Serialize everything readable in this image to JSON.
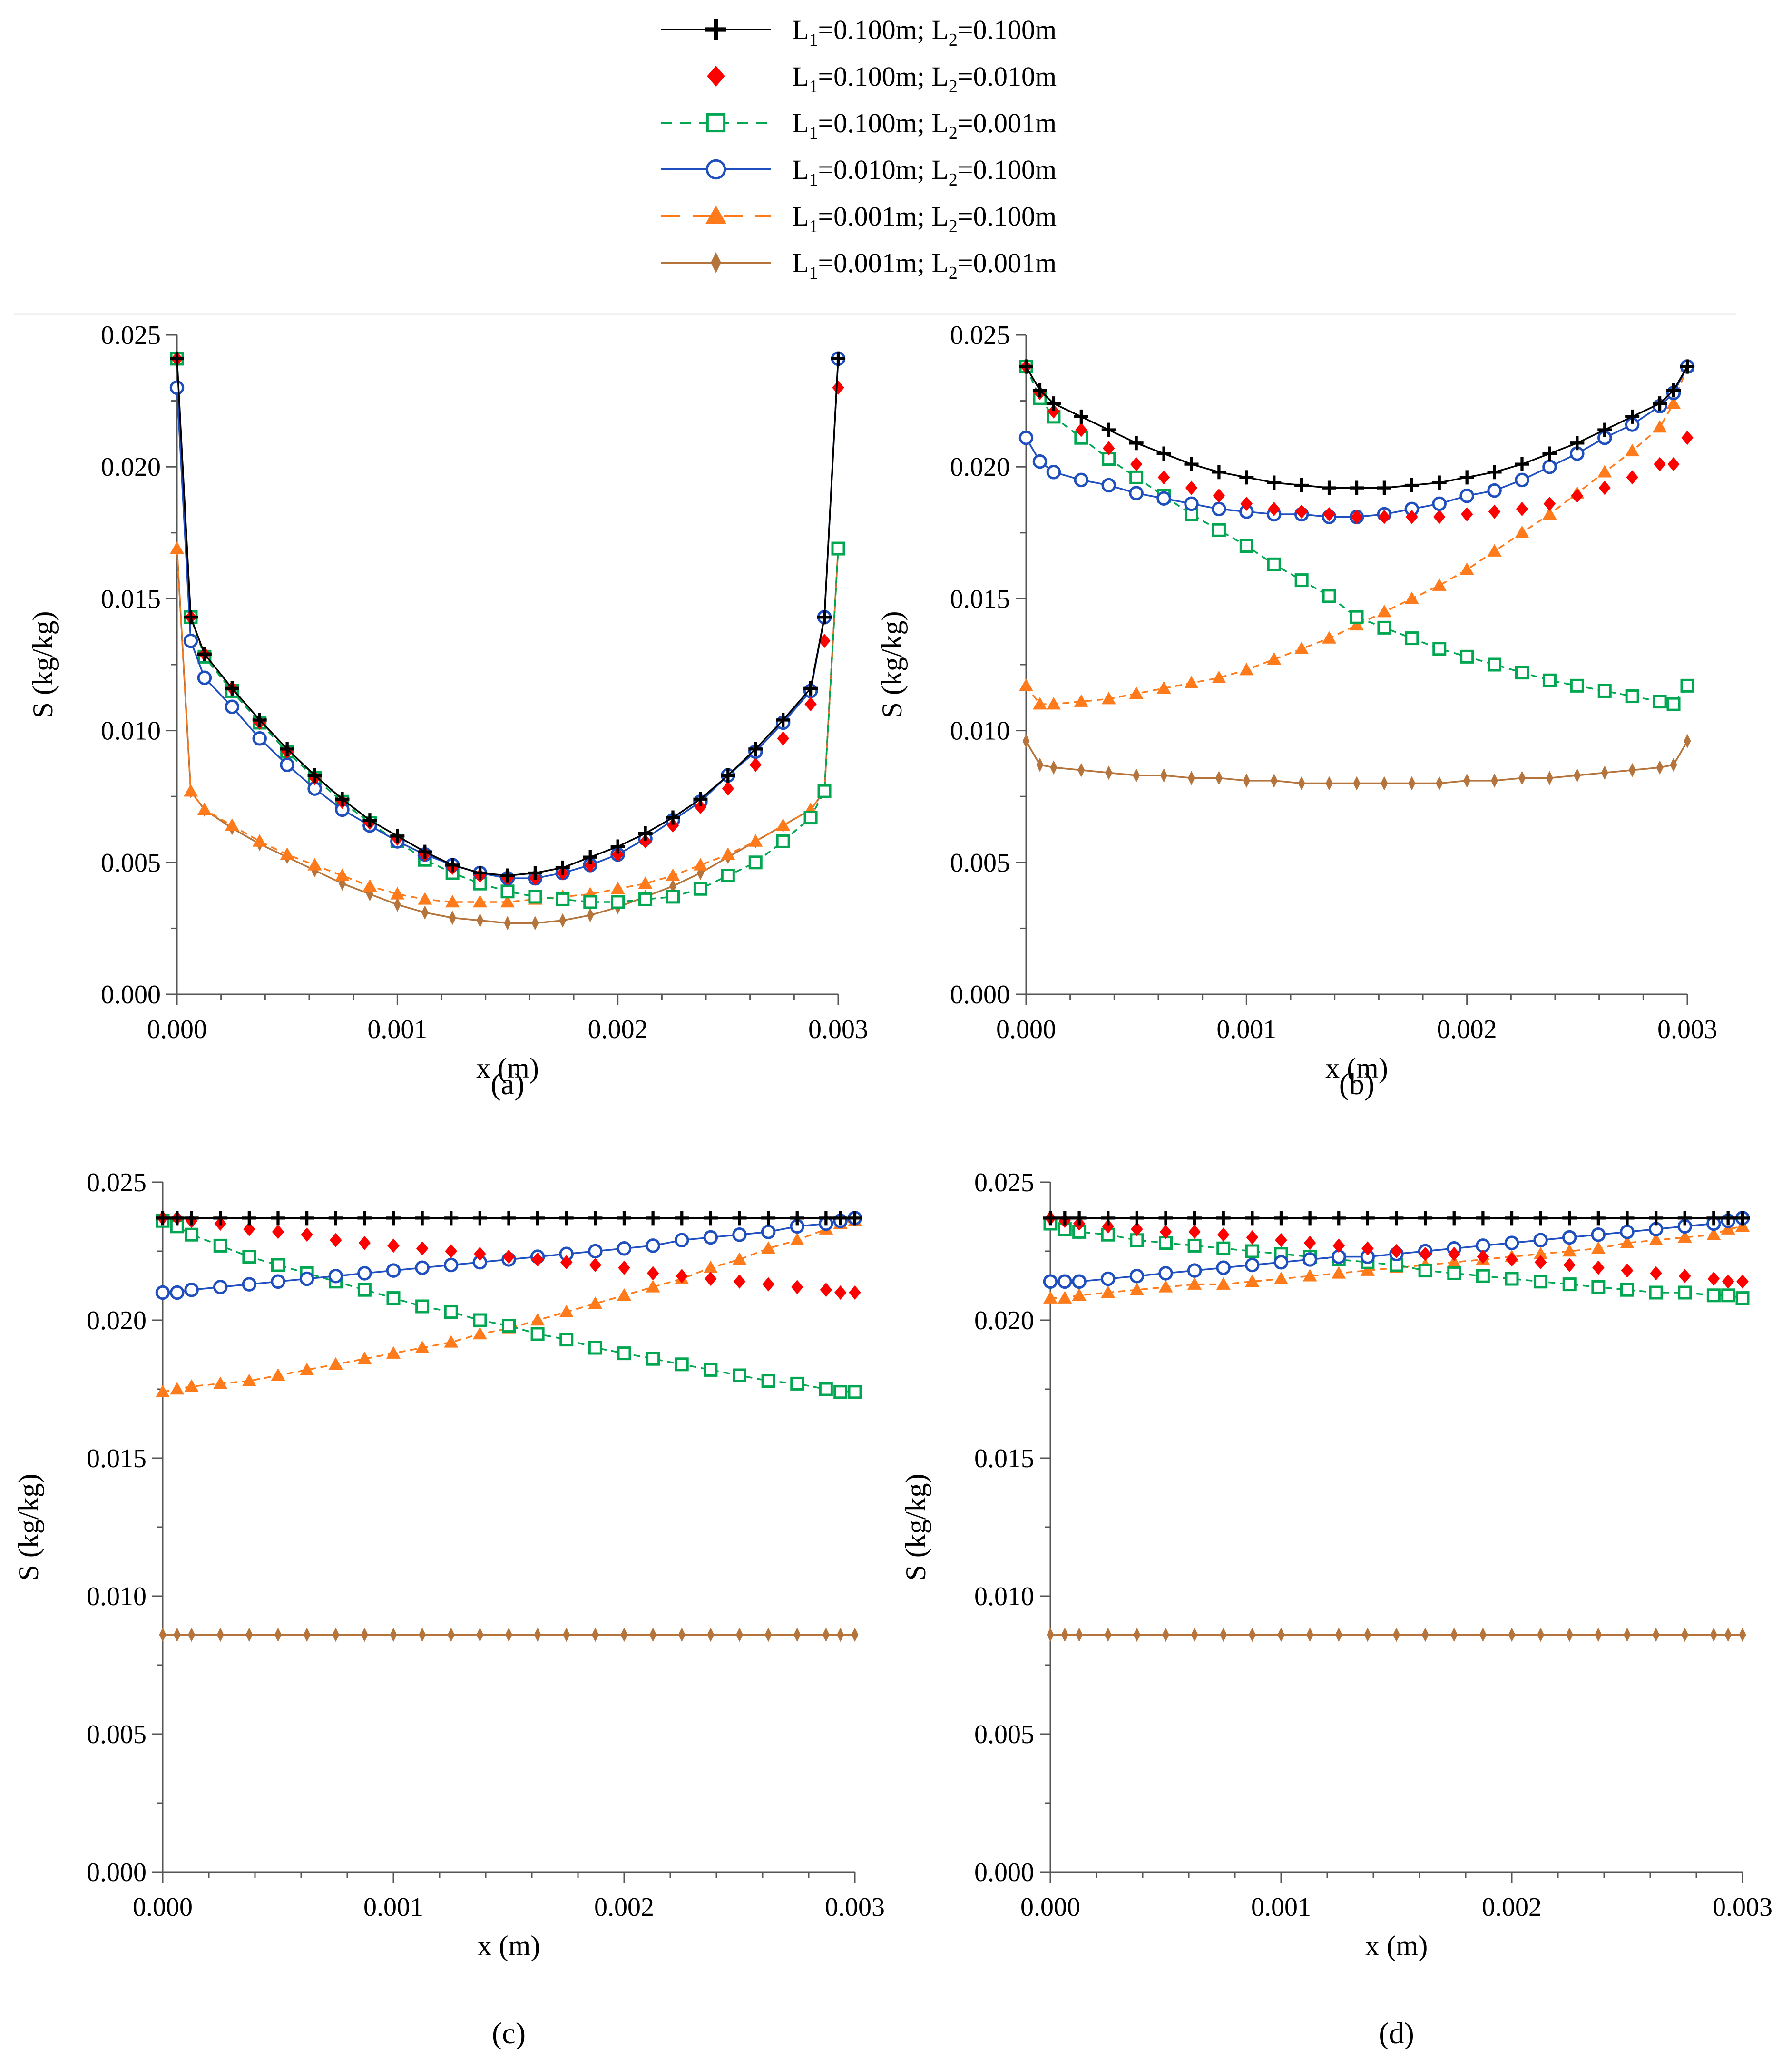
{
  "legend": [
    {
      "key": "s1",
      "L1": "0.100m",
      "L2": "0.100m",
      "color": "#000000",
      "marker": "plus",
      "line": "solid"
    },
    {
      "key": "s2",
      "L1": "0.100m",
      "L2": "0.010m",
      "color": "#ff0000",
      "marker": "diamond",
      "line": "none"
    },
    {
      "key": "s3",
      "L1": "0.100m",
      "L2": "0.001m",
      "color": "#00a650",
      "marker": "square",
      "line": "dashed"
    },
    {
      "key": "s4",
      "L1": "0.010m",
      "L2": "0.100m",
      "color": "#1f4fbf",
      "marker": "circle",
      "line": "solid"
    },
    {
      "key": "s5",
      "L1": "0.001m",
      "L2": "0.100m",
      "color": "#ff7a1a",
      "marker": "triangle",
      "line": "longdash"
    },
    {
      "key": "s6",
      "L1": "0.001m",
      "L2": "0.001m",
      "color": "#b5743c",
      "marker": "thindiamond",
      "line": "solid"
    }
  ],
  "chart_data": [
    {
      "type": "line",
      "panel_label": "(a)",
      "panel_letter": "a",
      "xlabel": "x (m)",
      "ylabel": "S (kg/kg)",
      "xlim": [
        0,
        0.003
      ],
      "ylim": [
        0,
        0.025
      ],
      "xticks": [
        "0.000",
        "0.001",
        "0.002",
        "0.003"
      ],
      "yticks": [
        "0.000",
        "0.005",
        "0.010",
        "0.015",
        "0.020",
        "0.025"
      ],
      "x": [
        0,
        6.25e-05,
        0.000125,
        0.00025,
        0.000375,
        0.0005,
        0.000625,
        0.00075,
        0.000875,
        0.001,
        0.001125,
        0.00125,
        0.001375,
        0.0015,
        0.001625,
        0.00175,
        0.001875,
        0.002,
        0.002125,
        0.00225,
        0.002375,
        0.0025,
        0.002625,
        0.00275,
        0.002875,
        0.0029375,
        0.003
      ],
      "series": [
        {
          "name": "s1",
          "values": [
            0.0241,
            0.0143,
            0.0129,
            0.0116,
            0.0104,
            0.0093,
            0.0083,
            0.0074,
            0.0066,
            0.006,
            0.0054,
            0.0049,
            0.0046,
            0.0045,
            0.0046,
            0.0048,
            0.0052,
            0.0056,
            0.0061,
            0.0067,
            0.0074,
            0.0083,
            0.0093,
            0.0104,
            0.0116,
            0.0143,
            0.0241
          ]
        },
        {
          "name": "s2",
          "values": [
            0.0241,
            0.0143,
            0.0129,
            0.0116,
            0.0103,
            0.0092,
            0.0082,
            0.0073,
            0.0065,
            0.0059,
            0.0053,
            0.0048,
            0.0045,
            0.0044,
            0.0044,
            0.0046,
            0.0049,
            0.0053,
            0.0058,
            0.0064,
            0.0071,
            0.0078,
            0.0087,
            0.0097,
            0.011,
            0.0134,
            0.023
          ]
        },
        {
          "name": "s3",
          "values": [
            0.0241,
            0.0143,
            0.0128,
            0.0115,
            0.0103,
            0.0092,
            0.0082,
            0.0073,
            0.0065,
            0.0058,
            0.0051,
            0.0046,
            0.0042,
            0.0039,
            0.0037,
            0.0036,
            0.0035,
            0.0035,
            0.0036,
            0.0037,
            0.004,
            0.0045,
            0.005,
            0.0058,
            0.0067,
            0.0077,
            0.0169
          ]
        },
        {
          "name": "s4",
          "values": [
            0.023,
            0.0134,
            0.012,
            0.0109,
            0.0097,
            0.0087,
            0.0078,
            0.007,
            0.0064,
            0.0058,
            0.0053,
            0.0049,
            0.0046,
            0.0044,
            0.0044,
            0.0046,
            0.0049,
            0.0053,
            0.0059,
            0.0066,
            0.0073,
            0.0083,
            0.0092,
            0.0103,
            0.0115,
            0.0143,
            0.0241
          ]
        },
        {
          "name": "s5",
          "values": [
            0.0169,
            0.0077,
            0.007,
            0.0064,
            0.0058,
            0.0053,
            0.0049,
            0.0045,
            0.0041,
            0.0038,
            0.0036,
            0.0035,
            0.0035,
            0.0035,
            0.0036,
            0.0037,
            0.0038,
            0.004,
            0.0042,
            0.0045,
            0.0049,
            0.0053,
            0.0058,
            0.0064,
            0.007,
            0.0077,
            0.0169
          ]
        },
        {
          "name": "s6",
          "values": [
            0.0169,
            0.0077,
            0.007,
            0.0063,
            0.0057,
            0.0052,
            0.0047,
            0.0042,
            0.0038,
            0.0034,
            0.0031,
            0.0029,
            0.0028,
            0.0027,
            0.0027,
            0.0028,
            0.003,
            0.0033,
            0.0037,
            0.0041,
            0.0046,
            0.0052,
            0.0058,
            0.0064,
            0.007,
            0.0077,
            0.0169
          ]
        }
      ]
    },
    {
      "type": "line",
      "panel_label": "(b)",
      "panel_letter": "b",
      "xlabel": "x (m)",
      "ylabel": "S (kg/kg)",
      "xlim": [
        0,
        0.003
      ],
      "ylim": [
        0,
        0.025
      ],
      "xticks": [
        "0.000",
        "0.001",
        "0.002",
        "0.003"
      ],
      "yticks": [
        "0.000",
        "0.005",
        "0.010",
        "0.015",
        "0.020",
        "0.025"
      ],
      "x": [
        0,
        6.25e-05,
        0.000125,
        0.00025,
        0.000375,
        0.0005,
        0.000625,
        0.00075,
        0.000875,
        0.001,
        0.001125,
        0.00125,
        0.001375,
        0.0015,
        0.001625,
        0.00175,
        0.001875,
        0.002,
        0.002125,
        0.00225,
        0.002375,
        0.0025,
        0.002625,
        0.00275,
        0.002875,
        0.0029375,
        0.003
      ],
      "series": [
        {
          "name": "s1",
          "values": [
            0.0238,
            0.0229,
            0.0224,
            0.0219,
            0.0214,
            0.0209,
            0.0205,
            0.0201,
            0.0198,
            0.0196,
            0.0194,
            0.0193,
            0.0192,
            0.0192,
            0.0192,
            0.0193,
            0.0194,
            0.0196,
            0.0198,
            0.0201,
            0.0205,
            0.0209,
            0.0214,
            0.0219,
            0.0224,
            0.0229,
            0.0238
          ]
        },
        {
          "name": "s2",
          "values": [
            0.0238,
            0.0228,
            0.0221,
            0.0214,
            0.0207,
            0.0201,
            0.0196,
            0.0192,
            0.0189,
            0.0186,
            0.0184,
            0.0183,
            0.0182,
            0.0181,
            0.0181,
            0.0181,
            0.0181,
            0.0182,
            0.0183,
            0.0184,
            0.0186,
            0.0189,
            0.0192,
            0.0196,
            0.0201,
            0.0201,
            0.0211
          ]
        },
        {
          "name": "s3",
          "values": [
            0.0238,
            0.0226,
            0.0219,
            0.0211,
            0.0203,
            0.0196,
            0.0189,
            0.0182,
            0.0176,
            0.017,
            0.0163,
            0.0157,
            0.0151,
            0.0143,
            0.0139,
            0.0135,
            0.0131,
            0.0128,
            0.0125,
            0.0122,
            0.0119,
            0.0117,
            0.0115,
            0.0113,
            0.0111,
            0.011,
            0.0117
          ]
        },
        {
          "name": "s4",
          "values": [
            0.0211,
            0.0202,
            0.0198,
            0.0195,
            0.0193,
            0.019,
            0.0188,
            0.0186,
            0.0184,
            0.0183,
            0.0182,
            0.0182,
            0.0181,
            0.0181,
            0.0182,
            0.0184,
            0.0186,
            0.0189,
            0.0191,
            0.0195,
            0.02,
            0.0205,
            0.0211,
            0.0216,
            0.0223,
            0.0228,
            0.0238
          ]
        },
        {
          "name": "s5",
          "values": [
            0.0117,
            0.011,
            0.011,
            0.0111,
            0.0112,
            0.0114,
            0.0116,
            0.0118,
            0.012,
            0.0123,
            0.0127,
            0.0131,
            0.0135,
            0.014,
            0.0145,
            0.015,
            0.0155,
            0.0161,
            0.0168,
            0.0175,
            0.0182,
            0.019,
            0.0198,
            0.0206,
            0.0215,
            0.0224,
            0.0238
          ]
        },
        {
          "name": "s6",
          "values": [
            0.0096,
            0.0087,
            0.0086,
            0.0085,
            0.0084,
            0.0083,
            0.0083,
            0.0082,
            0.0082,
            0.0081,
            0.0081,
            0.008,
            0.008,
            0.008,
            0.008,
            0.008,
            0.008,
            0.0081,
            0.0081,
            0.0082,
            0.0082,
            0.0083,
            0.0084,
            0.0085,
            0.0086,
            0.0087,
            0.0096
          ]
        }
      ]
    },
    {
      "type": "line",
      "panel_label": "(c)",
      "panel_letter": "c",
      "xlabel": "x (m)",
      "ylabel": "S (kg/kg)",
      "xlim": [
        0,
        0.003
      ],
      "ylim": [
        0,
        0.025
      ],
      "xticks": [
        "0.000",
        "0.001",
        "0.002",
        "0.003"
      ],
      "yticks": [
        "0.000",
        "0.005",
        "0.010",
        "0.015",
        "0.020",
        "0.025"
      ],
      "x": [
        0,
        6.25e-05,
        0.000125,
        0.00025,
        0.000375,
        0.0005,
        0.000625,
        0.00075,
        0.000875,
        0.001,
        0.001125,
        0.00125,
        0.001375,
        0.0015,
        0.001625,
        0.00175,
        0.001875,
        0.002,
        0.002125,
        0.00225,
        0.002375,
        0.0025,
        0.002625,
        0.00275,
        0.002875,
        0.0029375,
        0.003
      ],
      "series": [
        {
          "name": "s1",
          "values": [
            0.0237,
            0.0237,
            0.0237,
            0.0237,
            0.0237,
            0.0237,
            0.0237,
            0.0237,
            0.0237,
            0.0237,
            0.0237,
            0.0237,
            0.0237,
            0.0237,
            0.0237,
            0.0237,
            0.0237,
            0.0237,
            0.0237,
            0.0237,
            0.0237,
            0.0237,
            0.0237,
            0.0237,
            0.0237,
            0.0237,
            0.0237
          ]
        },
        {
          "name": "s2",
          "values": [
            0.0237,
            0.0237,
            0.0236,
            0.0235,
            0.0233,
            0.0232,
            0.0231,
            0.0229,
            0.0228,
            0.0227,
            0.0226,
            0.0225,
            0.0224,
            0.0223,
            0.0222,
            0.0221,
            0.022,
            0.0219,
            0.0217,
            0.0216,
            0.0215,
            0.0214,
            0.0213,
            0.0212,
            0.0211,
            0.021,
            0.021
          ]
        },
        {
          "name": "s3",
          "values": [
            0.0236,
            0.0234,
            0.0231,
            0.0227,
            0.0223,
            0.022,
            0.0217,
            0.0214,
            0.0211,
            0.0208,
            0.0205,
            0.0203,
            0.02,
            0.0198,
            0.0195,
            0.0193,
            0.019,
            0.0188,
            0.0186,
            0.0184,
            0.0182,
            0.018,
            0.0178,
            0.0177,
            0.0175,
            0.0174,
            0.0174
          ]
        },
        {
          "name": "s4",
          "values": [
            0.021,
            0.021,
            0.0211,
            0.0212,
            0.0213,
            0.0214,
            0.0215,
            0.0216,
            0.0217,
            0.0218,
            0.0219,
            0.022,
            0.0221,
            0.0222,
            0.0223,
            0.0224,
            0.0225,
            0.0226,
            0.0227,
            0.0229,
            0.023,
            0.0231,
            0.0232,
            0.0234,
            0.0235,
            0.0236,
            0.0237
          ]
        },
        {
          "name": "s5",
          "values": [
            0.0174,
            0.0175,
            0.0176,
            0.0177,
            0.0178,
            0.018,
            0.0182,
            0.0184,
            0.0186,
            0.0188,
            0.019,
            0.0192,
            0.0195,
            0.0197,
            0.02,
            0.0203,
            0.0206,
            0.0209,
            0.0212,
            0.0215,
            0.0219,
            0.0222,
            0.0226,
            0.0229,
            0.0233,
            0.0235,
            0.0236
          ]
        },
        {
          "name": "s6",
          "values": [
            0.0086,
            0.0086,
            0.0086,
            0.0086,
            0.0086,
            0.0086,
            0.0086,
            0.0086,
            0.0086,
            0.0086,
            0.0086,
            0.0086,
            0.0086,
            0.0086,
            0.0086,
            0.0086,
            0.0086,
            0.0086,
            0.0086,
            0.0086,
            0.0086,
            0.0086,
            0.0086,
            0.0086,
            0.0086,
            0.0086,
            0.0086
          ]
        }
      ]
    },
    {
      "type": "line",
      "panel_label": "(d)",
      "panel_letter": "d",
      "xlabel": "x (m)",
      "ylabel": "S (kg/kg)",
      "xlim": [
        0,
        0.003
      ],
      "ylim": [
        0,
        0.025
      ],
      "xticks": [
        "0.000",
        "0.001",
        "0.002",
        "0.003"
      ],
      "yticks": [
        "0.000",
        "0.005",
        "0.010",
        "0.015",
        "0.020",
        "0.025"
      ],
      "x": [
        0,
        6.25e-05,
        0.000125,
        0.00025,
        0.000375,
        0.0005,
        0.000625,
        0.00075,
        0.000875,
        0.001,
        0.001125,
        0.00125,
        0.001375,
        0.0015,
        0.001625,
        0.00175,
        0.001875,
        0.002,
        0.002125,
        0.00225,
        0.002375,
        0.0025,
        0.002625,
        0.00275,
        0.002875,
        0.0029375,
        0.003
      ],
      "series": [
        {
          "name": "s1",
          "values": [
            0.0237,
            0.0237,
            0.0237,
            0.0237,
            0.0237,
            0.0237,
            0.0237,
            0.0237,
            0.0237,
            0.0237,
            0.0237,
            0.0237,
            0.0237,
            0.0237,
            0.0237,
            0.0237,
            0.0237,
            0.0237,
            0.0237,
            0.0237,
            0.0237,
            0.0237,
            0.0237,
            0.0237,
            0.0237,
            0.0237,
            0.0237
          ]
        },
        {
          "name": "s2",
          "values": [
            0.0237,
            0.0236,
            0.0235,
            0.0234,
            0.0233,
            0.0232,
            0.0232,
            0.0231,
            0.023,
            0.0229,
            0.0228,
            0.0227,
            0.0226,
            0.0225,
            0.0224,
            0.0224,
            0.0223,
            0.0222,
            0.0221,
            0.022,
            0.0219,
            0.0218,
            0.0217,
            0.0216,
            0.0215,
            0.0214,
            0.0214
          ]
        },
        {
          "name": "s3",
          "values": [
            0.0235,
            0.0233,
            0.0232,
            0.0231,
            0.0229,
            0.0228,
            0.0227,
            0.0226,
            0.0225,
            0.0224,
            0.0223,
            0.0222,
            0.0221,
            0.022,
            0.0218,
            0.0217,
            0.0216,
            0.0215,
            0.0214,
            0.0213,
            0.0212,
            0.0211,
            0.021,
            0.021,
            0.0209,
            0.0209,
            0.0208
          ]
        },
        {
          "name": "s4",
          "values": [
            0.0214,
            0.0214,
            0.0214,
            0.0215,
            0.0216,
            0.0217,
            0.0218,
            0.0219,
            0.022,
            0.0221,
            0.0222,
            0.0223,
            0.0223,
            0.0224,
            0.0225,
            0.0226,
            0.0227,
            0.0228,
            0.0229,
            0.023,
            0.0231,
            0.0232,
            0.0233,
            0.0234,
            0.0235,
            0.0236,
            0.0237
          ]
        },
        {
          "name": "s5",
          "values": [
            0.0208,
            0.0208,
            0.0209,
            0.021,
            0.0211,
            0.0212,
            0.0213,
            0.0213,
            0.0214,
            0.0215,
            0.0216,
            0.0217,
            0.0218,
            0.0219,
            0.022,
            0.0221,
            0.0222,
            0.0223,
            0.0224,
            0.0225,
            0.0226,
            0.0228,
            0.0229,
            0.023,
            0.0231,
            0.0233,
            0.0234
          ]
        },
        {
          "name": "s6",
          "values": [
            0.0086,
            0.0086,
            0.0086,
            0.0086,
            0.0086,
            0.0086,
            0.0086,
            0.0086,
            0.0086,
            0.0086,
            0.0086,
            0.0086,
            0.0086,
            0.0086,
            0.0086,
            0.0086,
            0.0086,
            0.0086,
            0.0086,
            0.0086,
            0.0086,
            0.0086,
            0.0086,
            0.0086,
            0.0086,
            0.0086,
            0.0086
          ]
        }
      ]
    }
  ]
}
